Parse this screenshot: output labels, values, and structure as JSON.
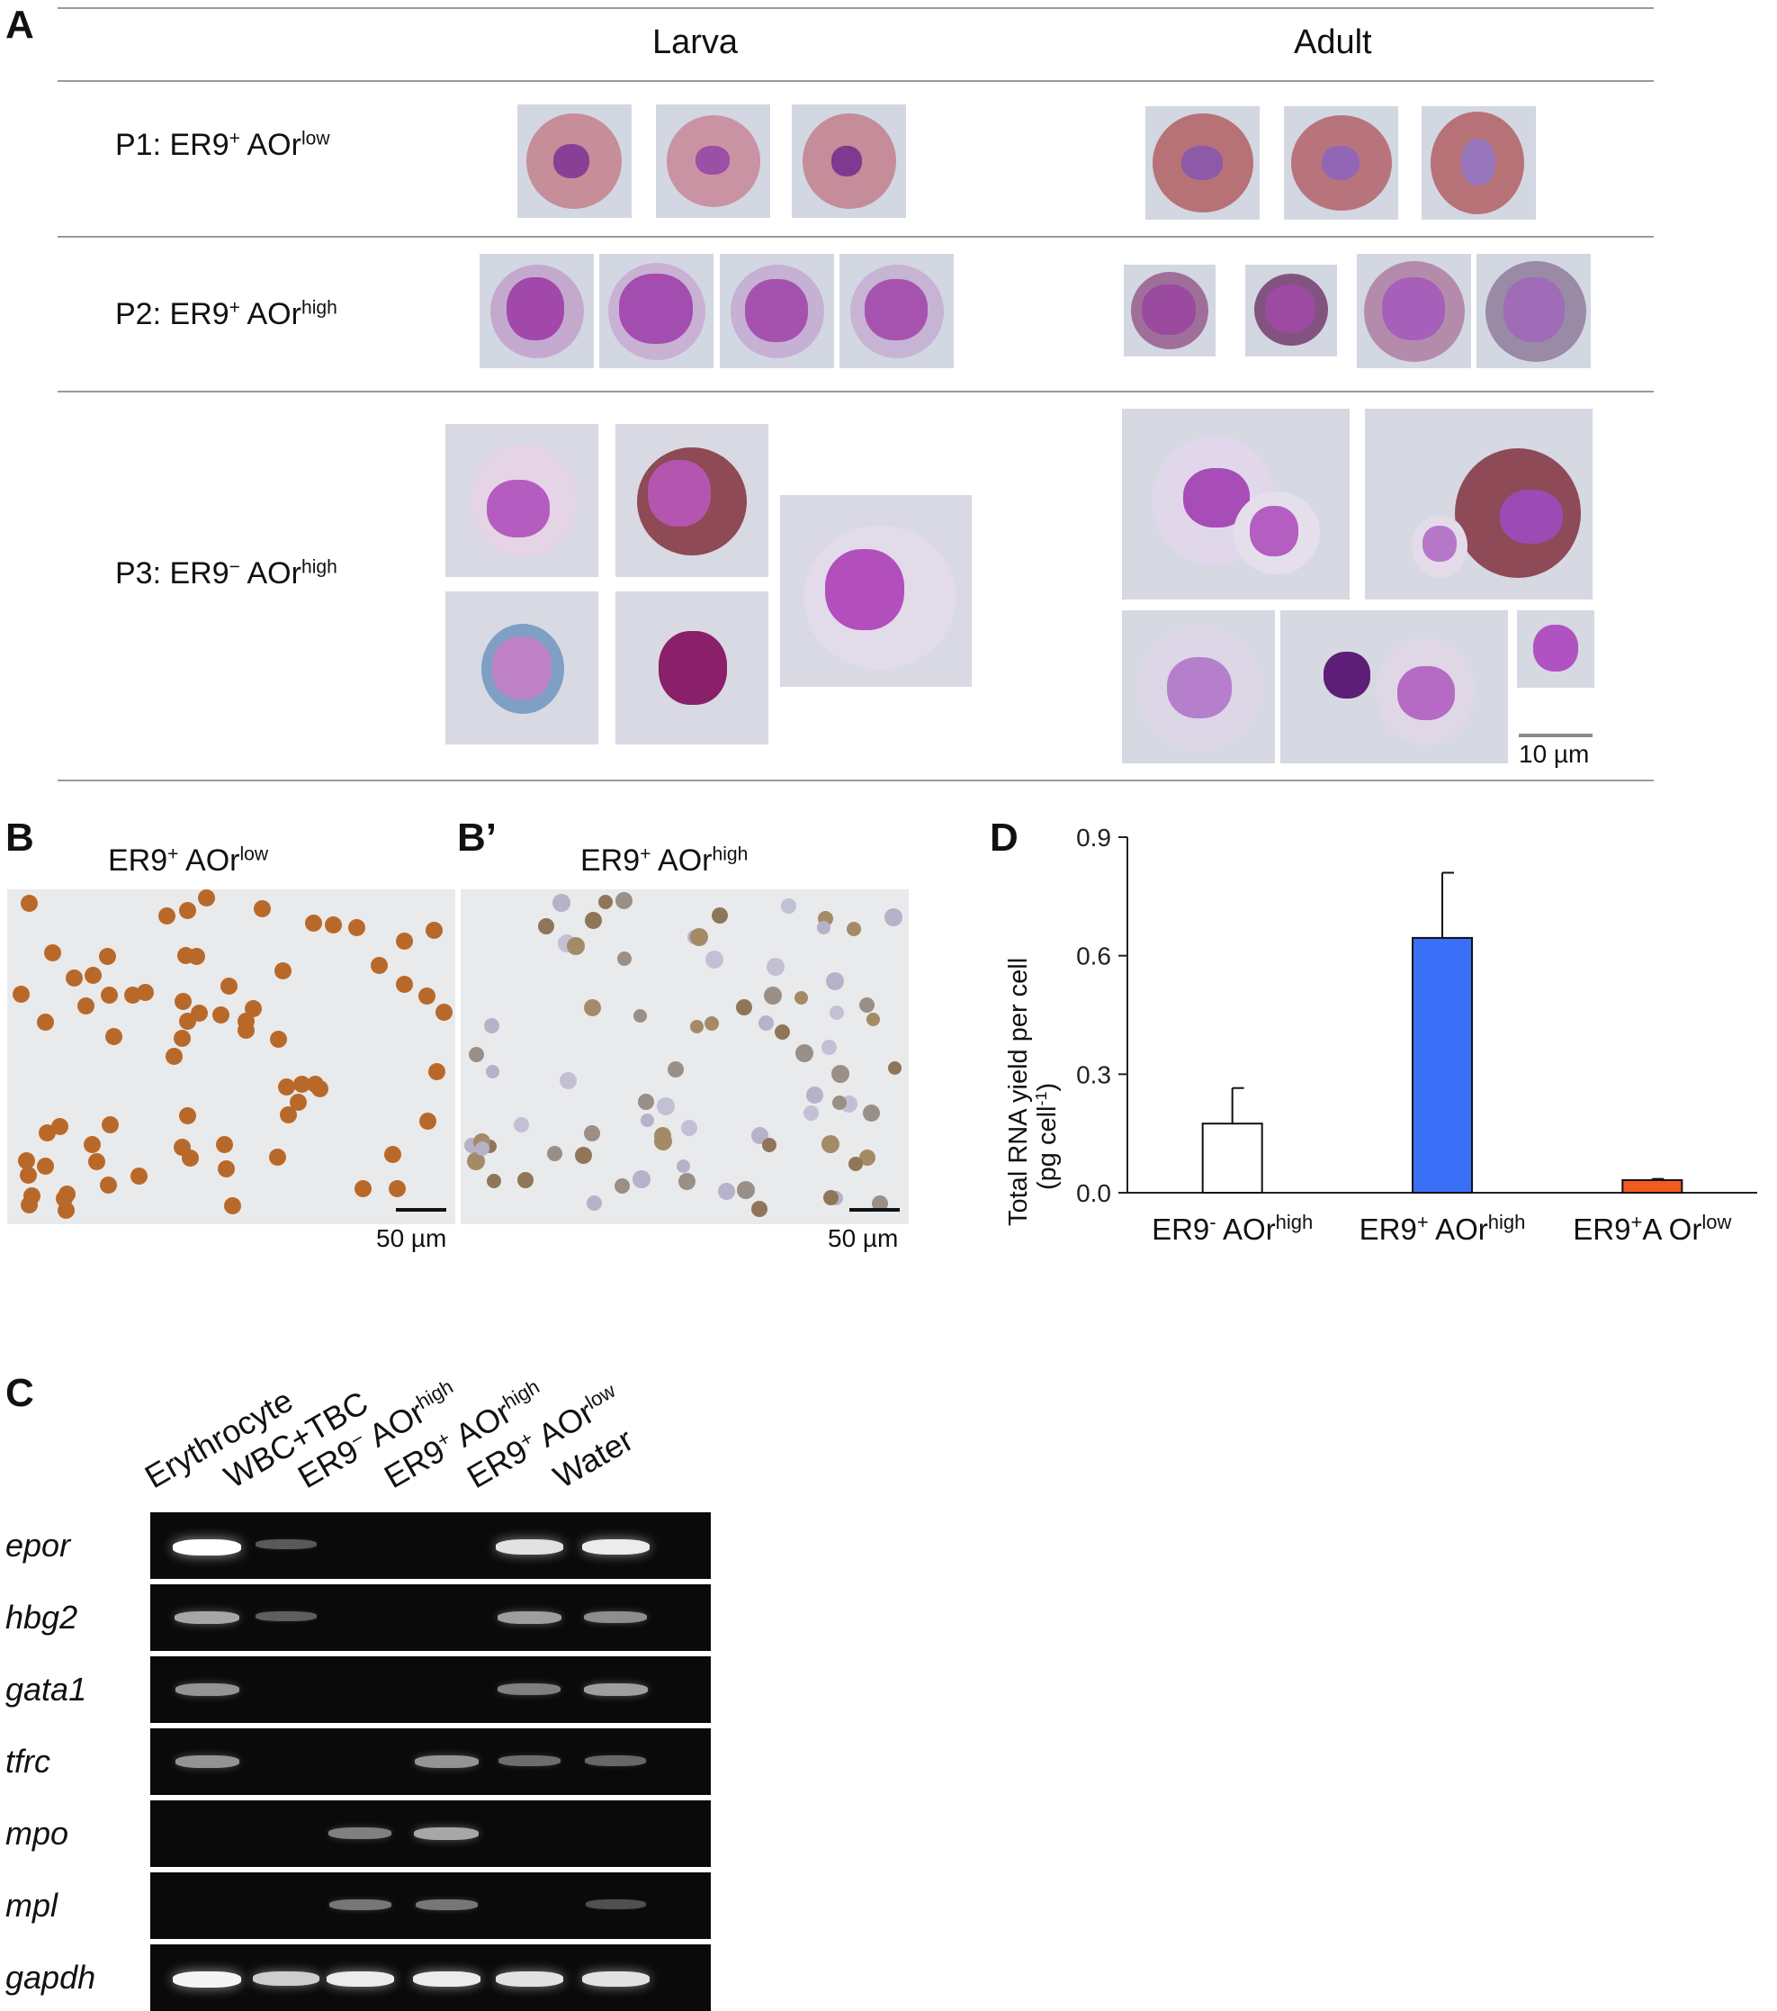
{
  "panels": {
    "A": "A",
    "B": "B",
    "B_prime": "B’",
    "C": "C",
    "D": "D"
  },
  "panelA": {
    "columns": [
      "Larva",
      "Adult"
    ],
    "rows": [
      {
        "pre": "P1: ER9",
        "sign": "+",
        "mid": " AOr",
        "level": "low"
      },
      {
        "pre": "P2: ER9",
        "sign": "+",
        "mid": " AOr",
        "level": "high"
      },
      {
        "pre": "P3: ER9",
        "sign": "−",
        "mid": " AOr",
        "level": "high"
      }
    ],
    "scale": "10 µm"
  },
  "panelB": {
    "left": {
      "pre": "ER9",
      "sign": "+",
      "mid": " AOr",
      "level": "low",
      "scale": "50 µm"
    },
    "right": {
      "pre": "ER9",
      "sign": "+",
      "mid": " AOr",
      "level": "high",
      "scale": "50 µm"
    }
  },
  "panelC": {
    "lanes": [
      {
        "pre": "Erythrocyte",
        "sign": "",
        "mid": "",
        "level": ""
      },
      {
        "pre": "WBC+TBC",
        "sign": "",
        "mid": "",
        "level": ""
      },
      {
        "pre": "ER9",
        "sign": "−",
        "mid": " AOr",
        "level": "high"
      },
      {
        "pre": "ER9",
        "sign": "+",
        "mid": " AOr",
        "level": "high"
      },
      {
        "pre": "ER9",
        "sign": "+",
        "mid": " AOr",
        "level": "low"
      },
      {
        "pre": "Water",
        "sign": "",
        "mid": "",
        "level": ""
      }
    ],
    "genes": [
      "epor",
      "hbg2",
      "gata1",
      "tfrc",
      "mpo",
      "mpl",
      "gapdh"
    ],
    "band_intensity": [
      [
        1.0,
        0.15,
        0.0,
        0.0,
        0.85,
        0.9,
        0.0
      ],
      [
        0.55,
        0.18,
        0.0,
        0.0,
        0.5,
        0.42,
        0.0
      ],
      [
        0.45,
        0.0,
        0.0,
        0.0,
        0.35,
        0.5,
        0.0
      ],
      [
        0.45,
        0.0,
        0.0,
        0.45,
        0.25,
        0.22,
        0.0
      ],
      [
        0.0,
        0.0,
        0.35,
        0.55,
        0.0,
        0.0,
        0.0
      ],
      [
        0.0,
        0.0,
        0.3,
        0.3,
        0.0,
        0.1,
        0.0
      ],
      [
        0.95,
        0.75,
        0.9,
        0.9,
        0.85,
        0.85,
        0.0
      ]
    ]
  },
  "chart_data": {
    "type": "bar",
    "ylabel": "Total RNA yield per cell",
    "ylabel_unit": "(pg cell",
    "ylabel_unit_sup": "-1",
    "ylabel_unit_end": ")",
    "ylim": [
      0,
      0.9
    ],
    "yticks": [
      "0.0",
      "0.3",
      "0.6",
      "0.9"
    ],
    "ytick_values": [
      0,
      0.3,
      0.6,
      0.9
    ],
    "categories": [
      {
        "pre": "ER9",
        "sign": "-",
        "mid": " AOr",
        "level": "high"
      },
      {
        "pre": "ER9",
        "sign": "+",
        "mid": " AOr",
        "level": "high"
      },
      {
        "pre": "ER9",
        "sign": "+",
        "mid": "A Or",
        "level": "low"
      }
    ],
    "values": [
      0.175,
      0.645,
      0.032
    ],
    "errors": [
      0.09,
      0.165,
      0.003
    ],
    "colors": [
      "#ffffff",
      "#3a6ff7",
      "#f25a1e"
    ]
  }
}
